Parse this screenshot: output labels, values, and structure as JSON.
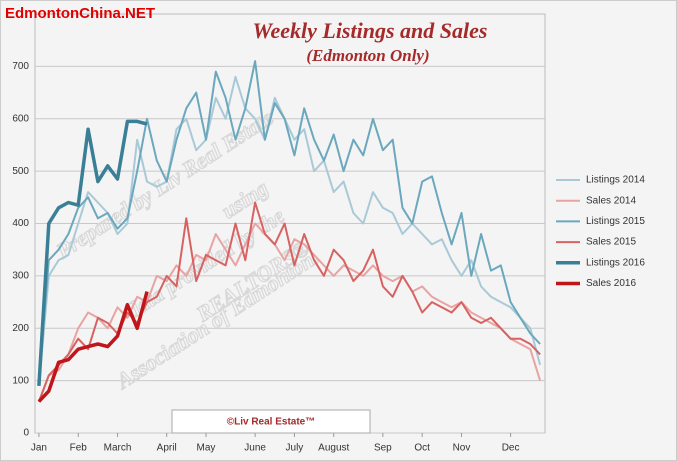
{
  "header": {
    "site": "EdmontonChina.NET"
  },
  "chart_data": {
    "type": "line",
    "title": "Weekly Listings and Sales",
    "subtitle": "(Edmonton Only)",
    "footer": "©Liv Real Estate™",
    "watermark": [
      "Prepared by Liv Real Estate",
      "using",
      "data provided by the",
      "REALTORS®",
      "Association of Edmonton."
    ],
    "x": [
      1,
      2,
      3,
      4,
      5,
      6,
      7,
      8,
      9,
      10,
      11,
      12,
      13,
      14,
      15,
      16,
      17,
      18,
      19,
      20,
      21,
      22,
      23,
      24,
      25,
      26,
      27,
      28,
      29,
      30,
      31,
      32,
      33,
      34,
      35,
      36,
      37,
      38,
      39,
      40,
      41,
      42,
      43,
      44,
      45,
      46,
      47,
      48,
      49,
      50,
      51,
      52
    ],
    "xlim": [
      0.6,
      52.5
    ],
    "xticks": [
      {
        "value": 1,
        "label": "Jan"
      },
      {
        "value": 5,
        "label": "Feb"
      },
      {
        "value": 9,
        "label": "March"
      },
      {
        "value": 14,
        "label": "April"
      },
      {
        "value": 18,
        "label": "May"
      },
      {
        "value": 23,
        "label": "June"
      },
      {
        "value": 27,
        "label": "July"
      },
      {
        "value": 31,
        "label": "August"
      },
      {
        "value": 36,
        "label": "Sep"
      },
      {
        "value": 40,
        "label": "Oct"
      },
      {
        "value": 44,
        "label": "Nov"
      },
      {
        "value": 49,
        "label": "Dec"
      }
    ],
    "ylim": [
      0,
      800
    ],
    "yticks": [
      0,
      100,
      200,
      300,
      400,
      500,
      600,
      700
    ],
    "grid": true,
    "legend": "right",
    "series": [
      {
        "name": "Listings 2014",
        "color": "#a9c9d7",
        "width": 2,
        "values": [
          90,
          300,
          330,
          340,
          400,
          460,
          440,
          420,
          380,
          400,
          560,
          480,
          470,
          480,
          580,
          600,
          540,
          560,
          640,
          600,
          680,
          620,
          600,
          560,
          640,
          600,
          560,
          580,
          500,
          520,
          460,
          480,
          420,
          400,
          460,
          430,
          420,
          380,
          400,
          380,
          360,
          370,
          330,
          300,
          330,
          280,
          260,
          250,
          240,
          220,
          200,
          130
        ]
      },
      {
        "name": "Sales 2014",
        "color": "#e8a3a3",
        "width": 2,
        "values": [
          60,
          110,
          120,
          150,
          200,
          230,
          220,
          200,
          240,
          220,
          260,
          250,
          300,
          290,
          320,
          300,
          340,
          330,
          380,
          350,
          320,
          360,
          400,
          380,
          360,
          330,
          370,
          360,
          340,
          320,
          300,
          320,
          310,
          300,
          320,
          300,
          290,
          300,
          270,
          280,
          260,
          250,
          240,
          250,
          230,
          220,
          210,
          200,
          180,
          170,
          160,
          100
        ]
      },
      {
        "name": "Listings 2015",
        "color": "#6ba8bd",
        "width": 2,
        "values": [
          100,
          330,
          350,
          380,
          430,
          450,
          410,
          420,
          390,
          410,
          500,
          600,
          520,
          480,
          560,
          620,
          650,
          560,
          690,
          640,
          560,
          620,
          710,
          560,
          630,
          600,
          530,
          620,
          560,
          520,
          570,
          500,
          560,
          530,
          600,
          540,
          560,
          430,
          400,
          480,
          490,
          420,
          360,
          420,
          300,
          380,
          310,
          320,
          250,
          220,
          190,
          170
        ]
      },
      {
        "name": "Sales 2015",
        "color": "#d86262",
        "width": 2,
        "values": [
          60,
          110,
          130,
          150,
          180,
          160,
          220,
          210,
          190,
          230,
          210,
          250,
          260,
          300,
          280,
          410,
          290,
          340,
          330,
          320,
          400,
          330,
          440,
          380,
          360,
          400,
          320,
          380,
          330,
          300,
          350,
          330,
          290,
          310,
          350,
          280,
          260,
          300,
          270,
          230,
          250,
          240,
          230,
          250,
          220,
          210,
          220,
          200,
          180,
          180,
          170,
          150
        ]
      },
      {
        "name": "Listings 2016",
        "color": "#3a7f95",
        "width": 3.5,
        "values": [
          90,
          400,
          430,
          440,
          435,
          580,
          480,
          510,
          485,
          595,
          595,
          590,
          null,
          null,
          null,
          null,
          null,
          null,
          null,
          null,
          null,
          null,
          null,
          null,
          null,
          null,
          null,
          null,
          null,
          null,
          null,
          null,
          null,
          null,
          null,
          null,
          null,
          null,
          null,
          null,
          null,
          null,
          null,
          null,
          null,
          null,
          null,
          null,
          null,
          null,
          null,
          null
        ]
      },
      {
        "name": "Sales 2016",
        "color": "#c0161b",
        "width": 3.5,
        "values": [
          60,
          80,
          135,
          140,
          160,
          165,
          170,
          165,
          185,
          245,
          200,
          270,
          null,
          null,
          null,
          null,
          null,
          null,
          null,
          null,
          null,
          null,
          null,
          null,
          null,
          null,
          null,
          null,
          null,
          null,
          null,
          null,
          null,
          null,
          null,
          null,
          null,
          null,
          null,
          null,
          null,
          null,
          null,
          null,
          null,
          null,
          null,
          null,
          null,
          null,
          null,
          null
        ]
      }
    ]
  }
}
